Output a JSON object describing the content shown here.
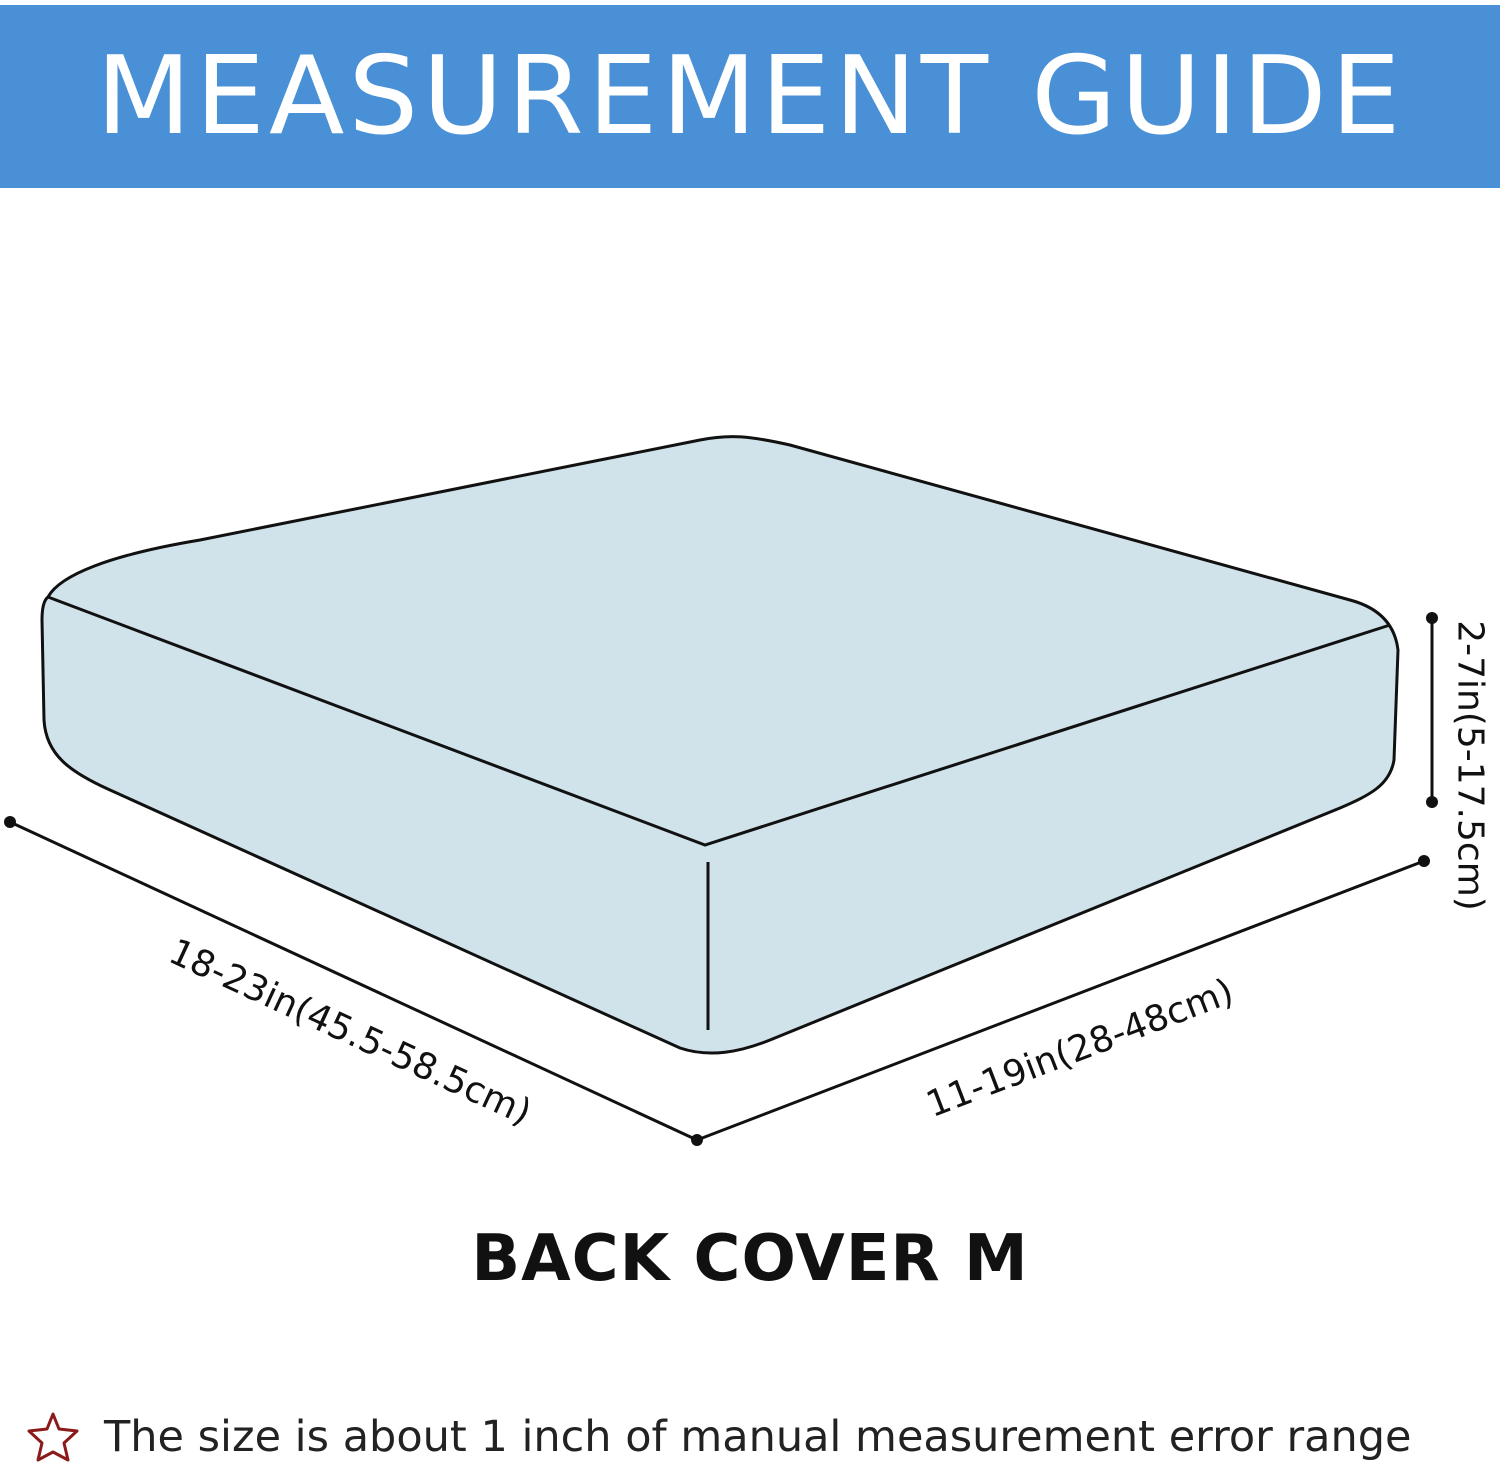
{
  "header": {
    "title": "MEASUREMENT GUIDE",
    "background": "#4a90d6"
  },
  "diagram": {
    "length_label": "18-23in(45.5-58.5cm)",
    "width_label": "11-19in(28-48cm)",
    "height_label": "2-7in(5-17.5cm)",
    "cushion_color": "#d0e2ea"
  },
  "product_title": "BACK COVER M",
  "footer": {
    "icon": "star-outline-icon",
    "note": "The size is about 1 inch of manual measurement error range",
    "icon_color": "#8b1a1a"
  }
}
